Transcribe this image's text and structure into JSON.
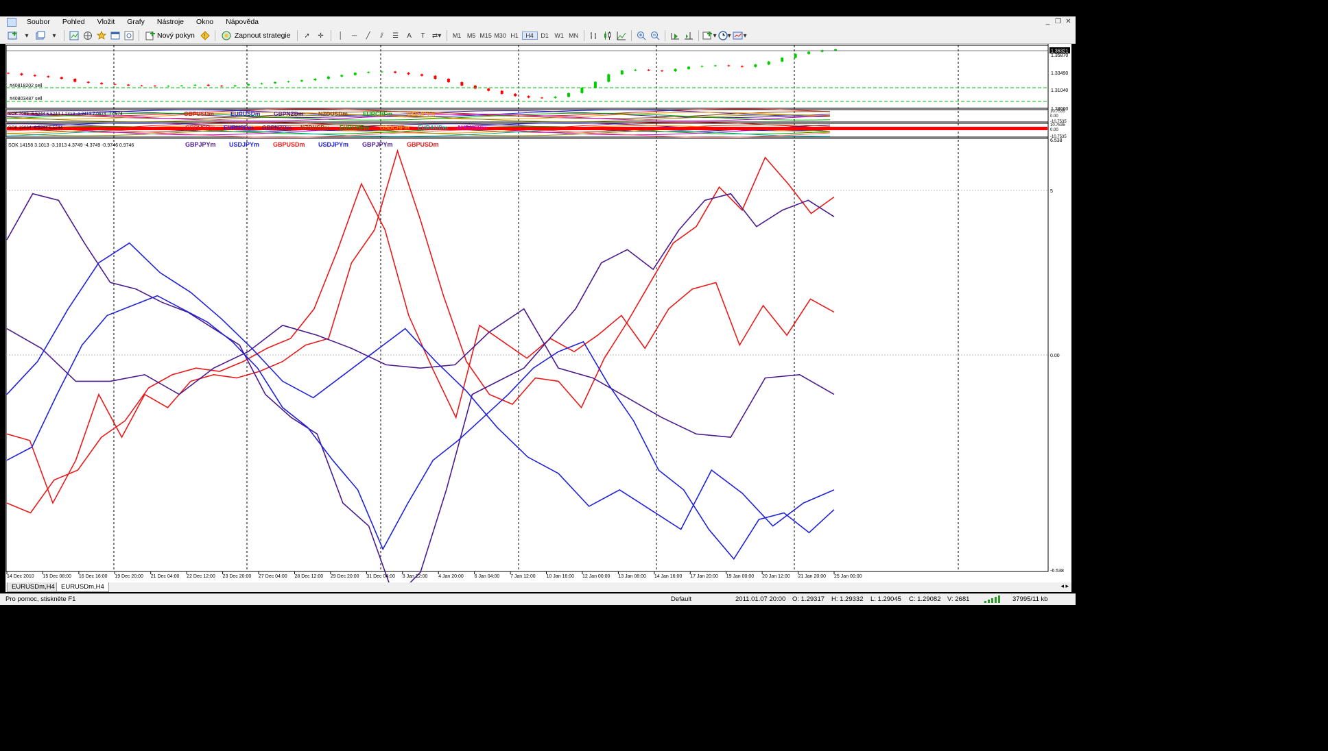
{
  "menu": [
    "Soubor",
    "Pohled",
    "Vložit",
    "Grafy",
    "Nástroje",
    "Okno",
    "Nápověda"
  ],
  "toolbar": {
    "new_order_label": "Nový pokyn",
    "strategy_label": "Zapnout strategie",
    "timeframes": [
      "M1",
      "M5",
      "M15",
      "M30",
      "H1",
      "H4",
      "D1",
      "W1",
      "MN"
    ],
    "active_timeframe": "H4"
  },
  "price_pane": {
    "order_labels": [
      "#40818202 sell",
      "#40803487 sell"
    ],
    "price_axis": [
      "1.36321",
      "1.35870",
      "1.33490",
      "1.31040",
      "1.28660"
    ],
    "current_price_label": "1.36321"
  },
  "indicator_pane_1": {
    "header": "SOK 7095 -6.5244 6.5244 1.2413 -1.2413 7.0574 -7.0574",
    "symbols": [
      "GBPUSDm",
      "EURUSDm",
      "GBPNZDm",
      "NZDUSDm",
      "EURCHFm",
      "USDJPYm"
    ],
    "axis": [
      "10.7535",
      "0.00",
      "-10.7535"
    ]
  },
  "indicator_pane_2": {
    "header": "SOK 19064 -6.5244 6.5244",
    "symbols": [
      "GBPUSDm",
      "EURUSDm",
      "GBPNZDm",
      "NZDUSDm",
      "EURCHFm",
      "USDCHFm",
      "EURAUDm",
      "AUDUSDm"
    ],
    "axis": [
      "10.7535",
      "0.00",
      "-10.7535"
    ]
  },
  "indicator_pane_3": {
    "header": "SOK 14158 3.1013 -3.1013 4.3749 -4.3749 -0.9746 0.9746",
    "legend": [
      {
        "label": "GBPJPYm",
        "color": "#4b1a8c"
      },
      {
        "label": "USDJPYm",
        "color": "#1f22d8"
      },
      {
        "label": "GBPUSDm",
        "color": "#e81a1a"
      },
      {
        "label": "USDJPYm",
        "color": "#1f22d8"
      },
      {
        "label": "GBPJPYm",
        "color": "#4b1a8c"
      },
      {
        "label": "GBPUSDm",
        "color": "#e81a1a"
      }
    ],
    "axis": [
      "6.538",
      "5",
      "0.00",
      "-6.538"
    ]
  },
  "time_axis": [
    "14 Dec 2010",
    "15 Dec 08:00",
    "16 Dec 16:00",
    "19 Dec 20:00",
    "21 Dec 04:00",
    "22 Dec 12:00",
    "23 Dec 20:00",
    "27 Dec 04:00",
    "28 Dec 12:00",
    "29 Dec 20:00",
    "31 Dec 04:00",
    "3 Jan 12:00",
    "4 Jan 20:00",
    "6 Jan 04:00",
    "7 Jan 12:00",
    "10 Jan 16:00",
    "12 Jan 00:00",
    "13 Jan 08:00",
    "14 Jan 16:00",
    "17 Jan 20:00",
    "19 Jan 00:00",
    "20 Jan 12:00",
    "21 Jan 20:00",
    "25 Jan 00:00"
  ],
  "tabs": [
    "EURUSDm,H4",
    "EURUSDm,H4"
  ],
  "status": {
    "help": "Pro pomoc, stiskněte F1",
    "profile": "Default",
    "datetime": "2011.01.07 20:00",
    "open": "O: 1.29317",
    "high": "H: 1.29332",
    "low": "L: 1.29045",
    "close": "C: 1.29082",
    "volume": "V: 2681",
    "traffic": "37995/11 kb"
  },
  "colors": {
    "bull": "#00cc00",
    "bear": "#ff0000",
    "red": "#e81a1a",
    "blue": "#1f22d8",
    "purple": "#4b1a8c"
  },
  "chart_data": [
    {
      "type": "candlestick",
      "title": "EURUSDm,H4",
      "ylim": [
        1.2866,
        1.36321
      ],
      "close_series": [
        1.331,
        1.329,
        1.3275,
        1.3262,
        1.324,
        1.32,
        1.3186,
        1.317,
        1.3162,
        1.315,
        1.3148,
        1.3143,
        1.3146,
        1.315,
        1.316,
        1.3148,
        1.314,
        1.3152,
        1.317,
        1.318,
        1.3196,
        1.3206,
        1.322,
        1.324,
        1.327,
        1.329,
        1.332,
        1.333,
        1.3336,
        1.332,
        1.33,
        1.328,
        1.324,
        1.3195,
        1.315,
        1.311,
        1.308,
        1.304,
        1.301,
        1.299,
        1.2985,
        1.3,
        1.305,
        1.312,
        1.32,
        1.33,
        1.335,
        1.336,
        1.335,
        1.334,
        1.337,
        1.34,
        1.341,
        1.3418,
        1.341,
        1.3398,
        1.343,
        1.347,
        1.352,
        1.357,
        1.36,
        1.3618,
        1.3632
      ]
    },
    {
      "type": "line",
      "title": "SOK 14158",
      "ylim": [
        -6.538,
        6.538
      ],
      "series": [
        {
          "name": "GBPUSDm",
          "color": "#e81a1a",
          "values": [
            -2.4,
            -2.6,
            -4.5,
            -3.2,
            -1.2,
            -2.5,
            -1.2,
            -1.6,
            -0.8,
            -0.6,
            -0.7,
            -0.5,
            -0.2,
            0.3,
            0.5,
            2.8,
            3.8,
            6.2,
            4.1,
            1.8,
            -0.2,
            -1.2,
            -1.5,
            -0.7,
            -0.8,
            -1.6,
            -0.1,
            1.0,
            2.2,
            3.4,
            3.9,
            5.1,
            4.4,
            6.0,
            5.2,
            4.3,
            4.8
          ]
        },
        {
          "name": "GBPUSDm",
          "color": "#e81a1a",
          "values": [
            -4.5,
            -4.8,
            -3.8,
            -3.5,
            -2.5,
            -2.0,
            -1.0,
            -0.6,
            -0.4,
            -0.5,
            -0.2,
            0.2,
            0.5,
            1.4,
            3.2,
            5.2,
            3.8,
            1.2,
            -0.4,
            -1.9,
            0.9,
            0.4,
            -0.1,
            0.5,
            0.1,
            0.6,
            1.2,
            0.2,
            1.4,
            2.0,
            2.2,
            0.3,
            1.5,
            0.6,
            1.7,
            1.3
          ]
        },
        {
          "name": "GBPJPYm",
          "color": "#4b1a8c",
          "values": [
            3.5,
            4.9,
            4.7,
            3.4,
            2.2,
            2.0,
            1.6,
            1.3,
            0.8,
            0.3,
            -1.2,
            -1.9,
            -2.4,
            -4.5,
            -5.2,
            -7.4,
            -6.6,
            -4.1,
            -1.2,
            -0.8,
            -0.4,
            0.5,
            1.4,
            2.8,
            3.2,
            2.6,
            3.8,
            4.7,
            4.9,
            3.9,
            4.4,
            4.7,
            4.2
          ]
        },
        {
          "name": "GBPJPYm",
          "color": "#4b1a8c",
          "values": [
            0.8,
            0.2,
            -0.8,
            -0.8,
            -0.6,
            -1.2,
            -0.4,
            0.1,
            0.9,
            0.6,
            0.2,
            -0.3,
            -0.4,
            -0.3,
            0.7,
            1.4,
            -0.4,
            -0.7,
            -1.3,
            -1.9,
            -2.4,
            -2.5,
            -0.7,
            -0.6,
            -1.2
          ]
        },
        {
          "name": "USDJPYm",
          "color": "#1f22d8",
          "values": [
            -3.2,
            -2.8,
            -1.2,
            0.3,
            1.2,
            1.5,
            1.8,
            1.4,
            1.0,
            0.4,
            -0.4,
            -1.6,
            -2.2,
            -3.2,
            -4.1,
            -5.9,
            -4.5,
            -3.2,
            -2.6,
            -1.9,
            -1.2,
            -0.4,
            0.1,
            0.4,
            -0.9,
            -2.0,
            -3.5,
            -4.1,
            -5.3,
            -6.2,
            -5.0,
            -4.8,
            -5.4,
            -4.7
          ]
        },
        {
          "name": "USDJPYm",
          "color": "#1f22d8",
          "values": [
            -1.2,
            -0.2,
            1.4,
            2.8,
            3.4,
            2.5,
            1.9,
            1.1,
            0.2,
            -0.8,
            -1.3,
            -0.6,
            0.1,
            0.8,
            -0.2,
            -1.1,
            -2.2,
            -3.1,
            -3.6,
            -4.6,
            -4.1,
            -4.7,
            -5.3,
            -3.5,
            -4.2,
            -5.2,
            -4.5,
            -4.1
          ]
        }
      ]
    }
  ]
}
